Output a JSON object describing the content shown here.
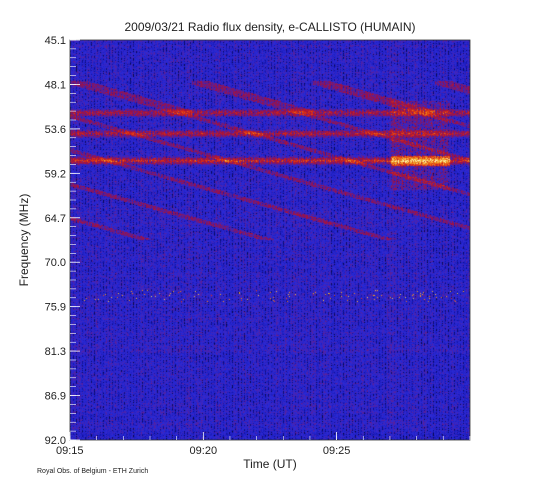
{
  "chart_data": {
    "type": "heatmap",
    "title": "2009/03/21  Radio flux density, e-CALLISTO (HUMAIN)",
    "xlabel": "Time (UT)",
    "ylabel": "Frequency (MHz)",
    "x_ticks": [
      "09:15",
      "09:20",
      "09:25"
    ],
    "y_ticks": [
      "45.1",
      "48.1",
      "53.6",
      "59.2",
      "64.7",
      "70.0",
      "75.9",
      "81.3",
      "86.9",
      "92.0"
    ],
    "y_range_mhz": [
      45.1,
      92.0
    ],
    "credit": "Royal Obs. of Belgium - ETH Zurich",
    "colormap": [
      "#000000",
      "#1010a0",
      "#2a2ad8",
      "#a01040",
      "#e03010",
      "#f0a020",
      "#ffffc0"
    ],
    "bright_bands_mhz": [
      53.6,
      56.0,
      59.2
    ],
    "spike_frequency_mhz": 75.0
  }
}
